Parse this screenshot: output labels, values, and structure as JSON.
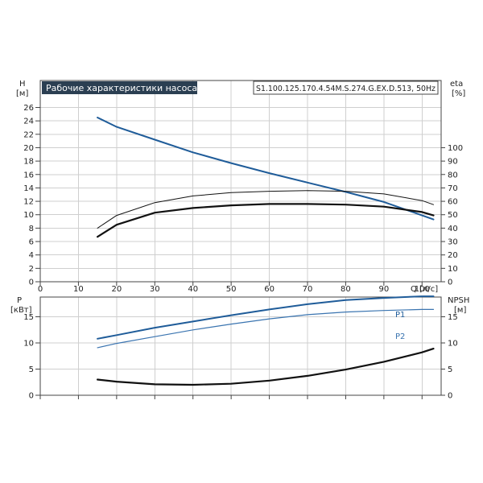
{
  "header": {
    "title": "Рабочие характеристики насоса",
    "model": "S1.100.125.170.4.54M.S.274.G.EX.D.513, 50Hz"
  },
  "chart_data": [
    {
      "type": "line",
      "panel": "top",
      "xlabel": "Q [л/с]",
      "ylabel": "H",
      "ylabel_unit": "[м]",
      "y2label": "eta",
      "y2label_unit": "[%]",
      "xlim": [
        0,
        105
      ],
      "xticks": [
        0,
        10,
        20,
        30,
        40,
        50,
        60,
        70,
        80,
        90,
        100
      ],
      "ylim": [
        0,
        26
      ],
      "yticks": [
        0,
        2,
        4,
        6,
        8,
        10,
        12,
        14,
        16,
        18,
        20,
        22,
        24,
        26
      ],
      "y2ticks": [
        0,
        10,
        20,
        30,
        40,
        50,
        60,
        70,
        80,
        90,
        100
      ],
      "grid": true,
      "series": [
        {
          "key": "H",
          "color": "#1f5c99",
          "width": 2,
          "x": [
            15,
            20,
            30,
            40,
            50,
            60,
            70,
            80,
            90,
            103
          ],
          "y": [
            24.5,
            23.1,
            21.2,
            19.3,
            17.7,
            16.2,
            14.8,
            13.4,
            11.9,
            9.3
          ]
        },
        {
          "key": "eta",
          "color": "#111111",
          "width": 1,
          "x": [
            15,
            20,
            30,
            40,
            50,
            60,
            70,
            80,
            90,
            100,
            103
          ],
          "y": [
            8.0,
            9.9,
            11.8,
            12.8,
            13.3,
            13.5,
            13.6,
            13.5,
            13.1,
            12.1,
            11.5
          ]
        },
        {
          "key": "eta2",
          "color": "#111111",
          "width": 2.2,
          "x": [
            15,
            20,
            30,
            40,
            50,
            60,
            70,
            80,
            90,
            100,
            103
          ],
          "y": [
            6.7,
            8.5,
            10.3,
            11.0,
            11.4,
            11.6,
            11.6,
            11.5,
            11.2,
            10.4,
            9.9
          ]
        }
      ]
    },
    {
      "type": "line",
      "panel": "bottom",
      "ylabel": "P",
      "ylabel_unit": "[кВт]",
      "y2label": "NPSH",
      "y2label_unit": "[м]",
      "xlim": [
        0,
        105
      ],
      "ylim": [
        0,
        20
      ],
      "yticks": [
        0,
        5,
        10,
        15
      ],
      "y2ticks": [
        0,
        5,
        10,
        15
      ],
      "grid": true,
      "series": [
        {
          "key": "P1",
          "name": "P1",
          "color": "#1f5c99",
          "width": 2,
          "x": [
            15,
            20,
            30,
            40,
            50,
            60,
            70,
            80,
            90,
            100,
            103
          ],
          "y": [
            10.8,
            11.5,
            12.9,
            14.1,
            15.3,
            16.4,
            17.4,
            18.2,
            18.6,
            18.9,
            18.9
          ]
        },
        {
          "key": "P2",
          "name": "P2",
          "color": "#3a74b0",
          "width": 1.2,
          "x": [
            15,
            20,
            30,
            40,
            50,
            60,
            70,
            80,
            90,
            100,
            103
          ],
          "y": [
            9.1,
            9.9,
            11.2,
            12.5,
            13.6,
            14.6,
            15.4,
            15.9,
            16.2,
            16.4,
            16.4
          ]
        },
        {
          "key": "NPSH",
          "color": "#111111",
          "width": 2.2,
          "x": [
            15,
            20,
            30,
            40,
            50,
            60,
            70,
            80,
            90,
            100,
            103
          ],
          "y": [
            3.0,
            2.6,
            2.1,
            2.0,
            2.2,
            2.8,
            3.7,
            4.9,
            6.4,
            8.2,
            8.9
          ]
        }
      ]
    }
  ]
}
